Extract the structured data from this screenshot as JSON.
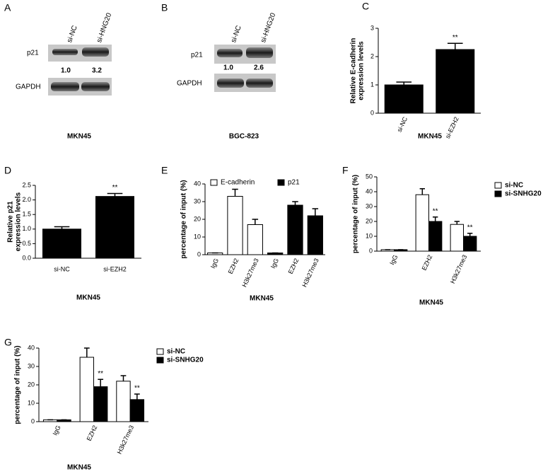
{
  "blots": [
    {
      "panel": "A",
      "lanes": [
        "si-NC",
        "si-HNG20"
      ],
      "rows": [
        "p21",
        "GAPDH"
      ],
      "ratios": [
        "1.0",
        "3.2"
      ],
      "cell_line": "MKN45"
    },
    {
      "panel": "B",
      "lanes": [
        "si-NC",
        "si-HNG20"
      ],
      "rows": [
        "p21",
        "GAPDH"
      ],
      "ratios": [
        "1.0",
        "2.6"
      ],
      "cell_line": "BGC-823"
    }
  ],
  "chart_data": [
    {
      "panel": "C",
      "type": "bar",
      "title": "MKN45",
      "ylabel": [
        "Relative E-cadherin",
        "expression levels"
      ],
      "categories": [
        "si-NC",
        "si-EZH2"
      ],
      "values": [
        1.0,
        2.25
      ],
      "errors": [
        0.1,
        0.22
      ],
      "significance": [
        null,
        "**"
      ],
      "color": "#000000",
      "ylim": [
        0,
        3
      ],
      "yticks": [
        0,
        1,
        2,
        3
      ]
    },
    {
      "panel": "D",
      "type": "bar",
      "title": "MKN45",
      "ylabel": [
        "Relative p21",
        "expression levels"
      ],
      "categories": [
        "si-NC",
        "si-EZH2"
      ],
      "values": [
        1.0,
        2.12
      ],
      "errors": [
        0.08,
        0.1
      ],
      "significance": [
        null,
        "**"
      ],
      "color": "#000000",
      "ylim": [
        0,
        2.5
      ],
      "yticks": [
        {
          "value": 0,
          "label": "0.0"
        },
        0.5,
        {
          "value": 1,
          "label": "1.0"
        },
        1.5,
        {
          "value": 2,
          "label": "2.0"
        },
        2.5
      ]
    },
    {
      "panel": "E",
      "type": "bar",
      "title": "MKN45",
      "ylabel": [
        "percentage of input (%)"
      ],
      "categories": [
        "IgG",
        "EZH2",
        "H3k27me3",
        "IgG",
        "EZH2",
        "H3k27me3"
      ],
      "series": [
        {
          "name": "E-cadherin",
          "color": "#ffffff",
          "values": [
            1,
            33,
            17,
            null,
            null,
            null
          ],
          "errors": [
            0,
            4,
            3,
            null,
            null,
            null
          ]
        },
        {
          "name": "p21",
          "color": "#000000",
          "values": [
            null,
            null,
            null,
            1,
            28,
            22
          ],
          "errors": [
            null,
            null,
            null,
            0,
            2,
            4
          ]
        }
      ],
      "legend": "top",
      "ylim": [
        0,
        40
      ],
      "yticks": [
        0,
        10,
        20,
        30,
        40
      ]
    },
    {
      "panel": "F",
      "type": "bar",
      "title": "MKN45",
      "ylabel": [
        "percentage of input (%)"
      ],
      "categories": [
        "IgG",
        "EZH2",
        "H3k27me3"
      ],
      "series": [
        {
          "name": "si-NC",
          "color": "#ffffff",
          "values": [
            1,
            38,
            18
          ],
          "errors": [
            0,
            4,
            2
          ]
        },
        {
          "name": "si-SNHG20",
          "color": "#000000",
          "values": [
            1,
            20,
            10
          ],
          "errors": [
            0,
            3,
            2
          ],
          "significance": [
            null,
            "**",
            "**"
          ]
        }
      ],
      "legend": "right",
      "ylim": [
        0,
        50
      ],
      "yticks": [
        0,
        10,
        20,
        30,
        40,
        50
      ]
    },
    {
      "panel": "G",
      "type": "bar",
      "title": "MKN45",
      "ylabel": [
        "percentage of input (%)"
      ],
      "categories": [
        "IgG",
        "EZH2",
        "H3k27me3"
      ],
      "series": [
        {
          "name": "si-NC",
          "color": "#ffffff",
          "values": [
            1,
            35,
            22
          ],
          "errors": [
            0,
            5,
            3
          ]
        },
        {
          "name": "si-SNHG20",
          "color": "#000000",
          "values": [
            1,
            19,
            12
          ],
          "errors": [
            0,
            4,
            3
          ],
          "significance": [
            null,
            "**",
            "**"
          ]
        }
      ],
      "legend": "right",
      "ylim": [
        0,
        40
      ],
      "yticks": [
        0,
        10,
        20,
        30,
        40
      ]
    }
  ]
}
